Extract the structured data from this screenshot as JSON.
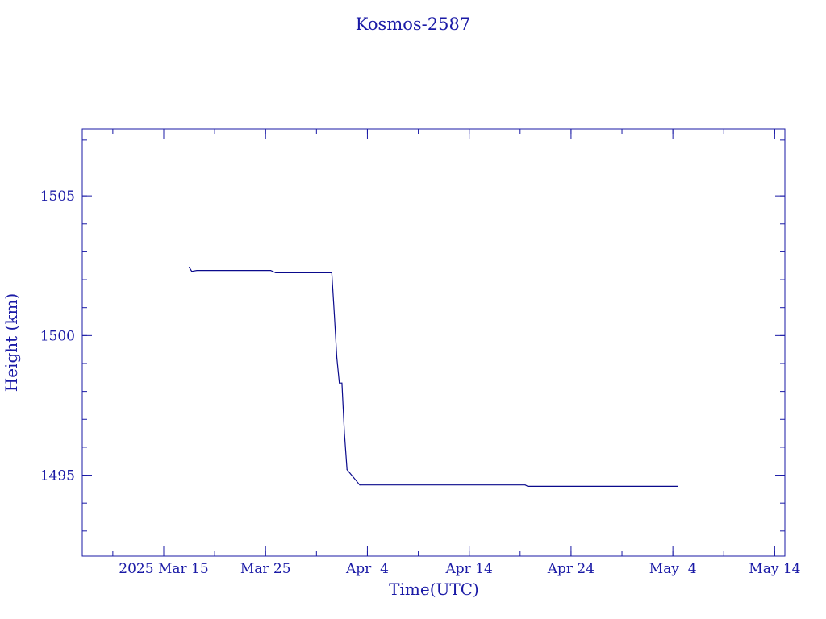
{
  "chart_data": {
    "type": "line",
    "title": "Kosmos-2587",
    "xlabel": "Time(UTC)",
    "ylabel": "Height (km)",
    "x_range": [
      "2025-03-07",
      "2025-05-15"
    ],
    "ylim": [
      1492.1,
      1507.4
    ],
    "x_ticks": [
      {
        "label": "2025 Mar 15",
        "date": "2025-03-15"
      },
      {
        "label": "Mar 25",
        "date": "2025-03-25"
      },
      {
        "label": "Apr  4",
        "date": "2025-04-04"
      },
      {
        "label": "Apr 14",
        "date": "2025-04-14"
      },
      {
        "label": "Apr 24",
        "date": "2025-04-24"
      },
      {
        "label": "May  4",
        "date": "2025-05-04"
      },
      {
        "label": "May 14",
        "date": "2025-05-14"
      }
    ],
    "y_ticks": [
      1495,
      1500,
      1505
    ],
    "series": [
      {
        "color": "#0a0a8c",
        "points": [
          [
            "2025-03-17T12:00",
            1502.45
          ],
          [
            "2025-03-17T18:00",
            1502.3
          ],
          [
            "2025-03-18T06:00",
            1502.33
          ],
          [
            "2025-03-25T12:00",
            1502.33
          ],
          [
            "2025-03-26T00:00",
            1502.25
          ],
          [
            "2025-03-31T12:00",
            1502.25
          ],
          [
            "2025-03-31T18:00",
            1500.8
          ],
          [
            "2025-04-01T00:00",
            1499.2
          ],
          [
            "2025-04-01T06:00",
            1498.3
          ],
          [
            "2025-04-01T12:00",
            1498.3
          ],
          [
            "2025-04-01T18:00",
            1496.5
          ],
          [
            "2025-04-02T00:00",
            1495.2
          ],
          [
            "2025-04-03T06:00",
            1494.65
          ],
          [
            "2025-04-19T12:00",
            1494.65
          ],
          [
            "2025-04-19T18:00",
            1494.6
          ],
          [
            "2025-05-04T12:00",
            1494.6
          ]
        ]
      }
    ],
    "grid": false,
    "colors": {
      "axis": "#1a1aa6",
      "line": "#0a0a8c"
    }
  }
}
